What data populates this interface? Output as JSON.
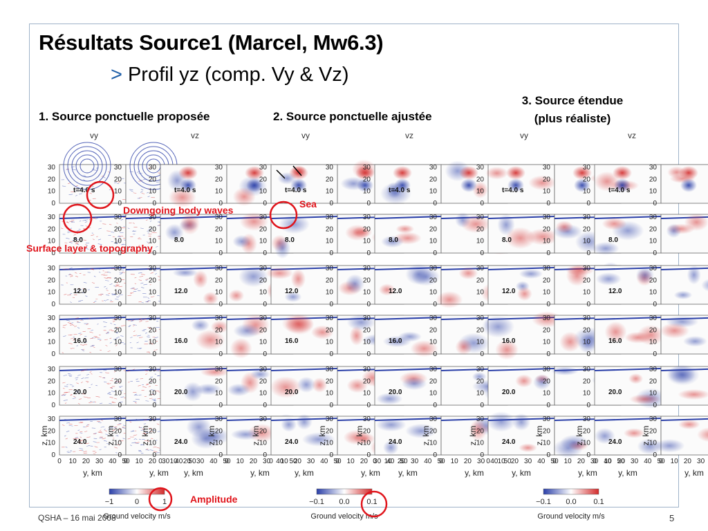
{
  "slide": {
    "title": "Résultats Source1 (Marcel, Mw6.3)",
    "subtitle": "Profil yz (comp. Vy & Vz)",
    "footer": "QSHA – 16 mai 2008",
    "page_number": "5"
  },
  "columns": [
    {
      "title": "1. Source ponctuelle proposée",
      "components": [
        "vy",
        "vz"
      ],
      "colorbar": {
        "ticks": [
          "−1",
          "0",
          "1"
        ],
        "label": "Ground velocity m/s"
      }
    },
    {
      "title": "2. Source ponctuelle ajustée",
      "components": [
        "vy",
        "vz"
      ],
      "colorbar": {
        "ticks": [
          "−0.1",
          "0.0",
          "0.1"
        ],
        "label": "Ground velocity m/s"
      }
    },
    {
      "title_line1": "3. Source étendue",
      "title_line2": "(plus réaliste)",
      "components": [
        "vy",
        "vz"
      ],
      "colorbar": {
        "ticks": [
          "−0.1",
          "0.0",
          "0.1"
        ],
        "label": "Ground velocity m/s"
      }
    }
  ],
  "snapshots": [
    "t=4.0 s",
    "8.0",
    "12.0",
    "16.0",
    "20.0",
    "24.0"
  ],
  "z_ticks": [
    "30",
    "20",
    "10",
    "0"
  ],
  "y_ticks": [
    "0",
    "10",
    "20",
    "30",
    "40",
    "50"
  ],
  "z_label": "z, km",
  "y_label": "y, km",
  "annotations": {
    "downgoing": "Downgoing body waves",
    "surface": "Surface layer & topography",
    "sea": "Sea",
    "amplitude": "Amplitude"
  },
  "colors": {
    "accent": "#e0141b",
    "positive": "#d22a2a",
    "negative": "#2a3fa8",
    "frame": "#9fb3c8"
  }
}
